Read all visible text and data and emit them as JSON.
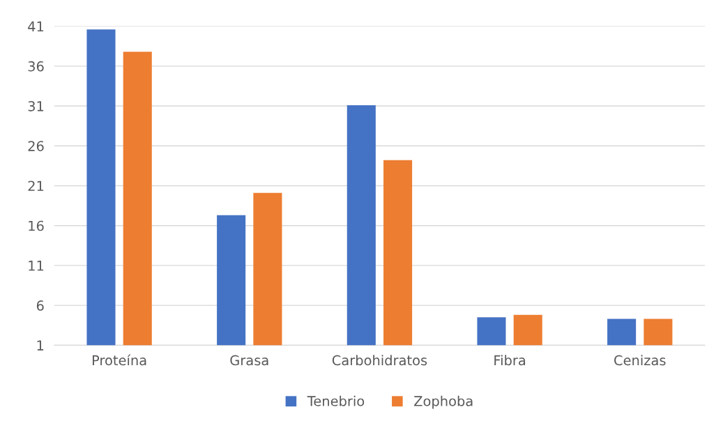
{
  "chart_data": {
    "type": "bar",
    "categories": [
      "Proteína",
      "Grasa",
      "Carbohidratos",
      "Fibra",
      "Cenizas"
    ],
    "series": [
      {
        "name": "Tenebrio",
        "color": "#4472c4",
        "values": [
          40.6,
          17.3,
          31.1,
          4.5,
          4.3
        ]
      },
      {
        "name": "Zophoba",
        "color": "#ed7d31",
        "values": [
          37.8,
          20.1,
          24.2,
          4.8,
          4.3
        ]
      }
    ],
    "ylim": [
      1,
      41
    ],
    "yticks": [
      1,
      6,
      11,
      16,
      21,
      26,
      31,
      36,
      41
    ],
    "grid": "y",
    "legend": "bottom"
  }
}
